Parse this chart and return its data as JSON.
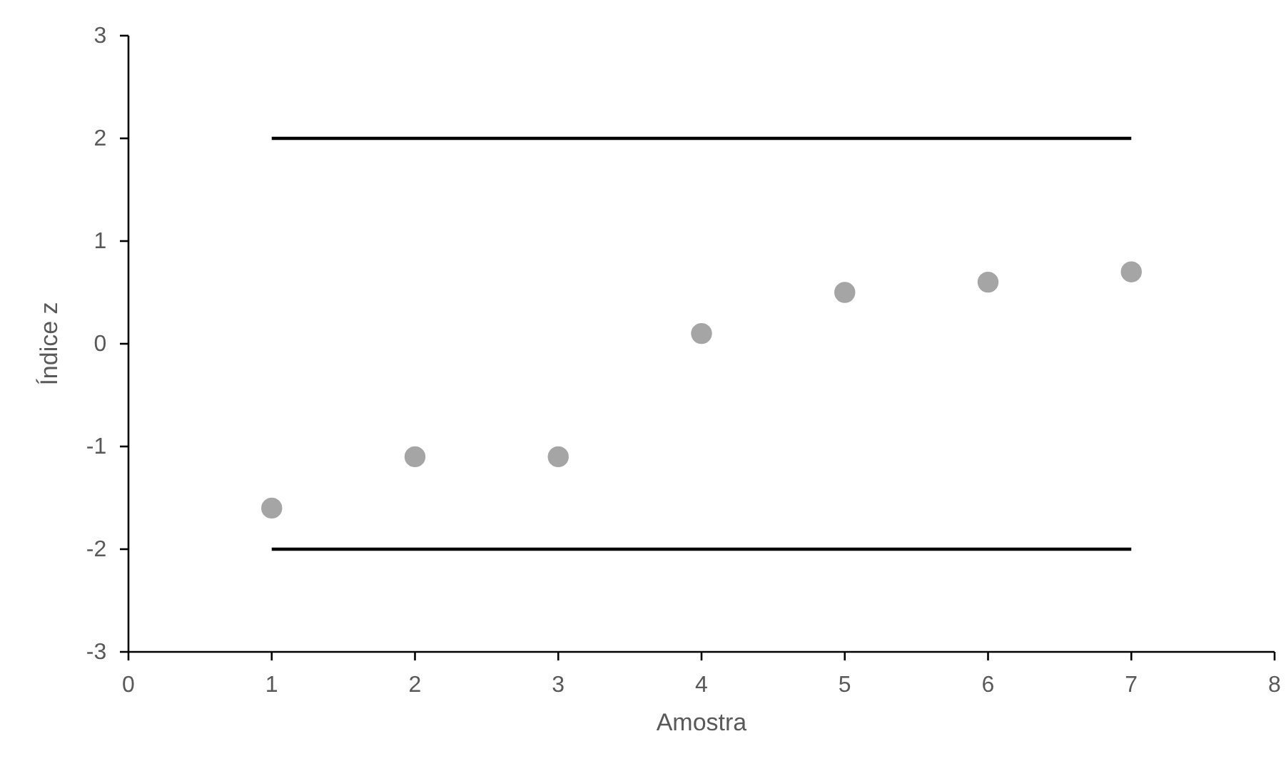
{
  "chart_data": {
    "type": "scatter",
    "xlabel": "Amostra",
    "ylabel": "Índice z",
    "xlim": [
      0,
      8
    ],
    "xticks": [
      0,
      1,
      2,
      3,
      4,
      5,
      6,
      7,
      8
    ],
    "ylim": [
      -3,
      3
    ],
    "yticks": [
      -3,
      -2,
      -1,
      0,
      1,
      2,
      3
    ],
    "grid": false,
    "series": [
      {
        "type": "scatter",
        "marker": "circle",
        "color": "#a5a5a5",
        "x": [
          1,
          2,
          3,
          4,
          5,
          6,
          7
        ],
        "values": [
          -1.6,
          -1.1,
          -1.1,
          0.1,
          0.5,
          0.6,
          0.7
        ]
      },
      {
        "type": "line",
        "color": "#000000",
        "x": [
          1,
          7
        ],
        "values": [
          2,
          2
        ]
      },
      {
        "type": "line",
        "color": "#000000",
        "x": [
          1,
          7
        ],
        "values": [
          -2,
          -2
        ]
      }
    ]
  }
}
